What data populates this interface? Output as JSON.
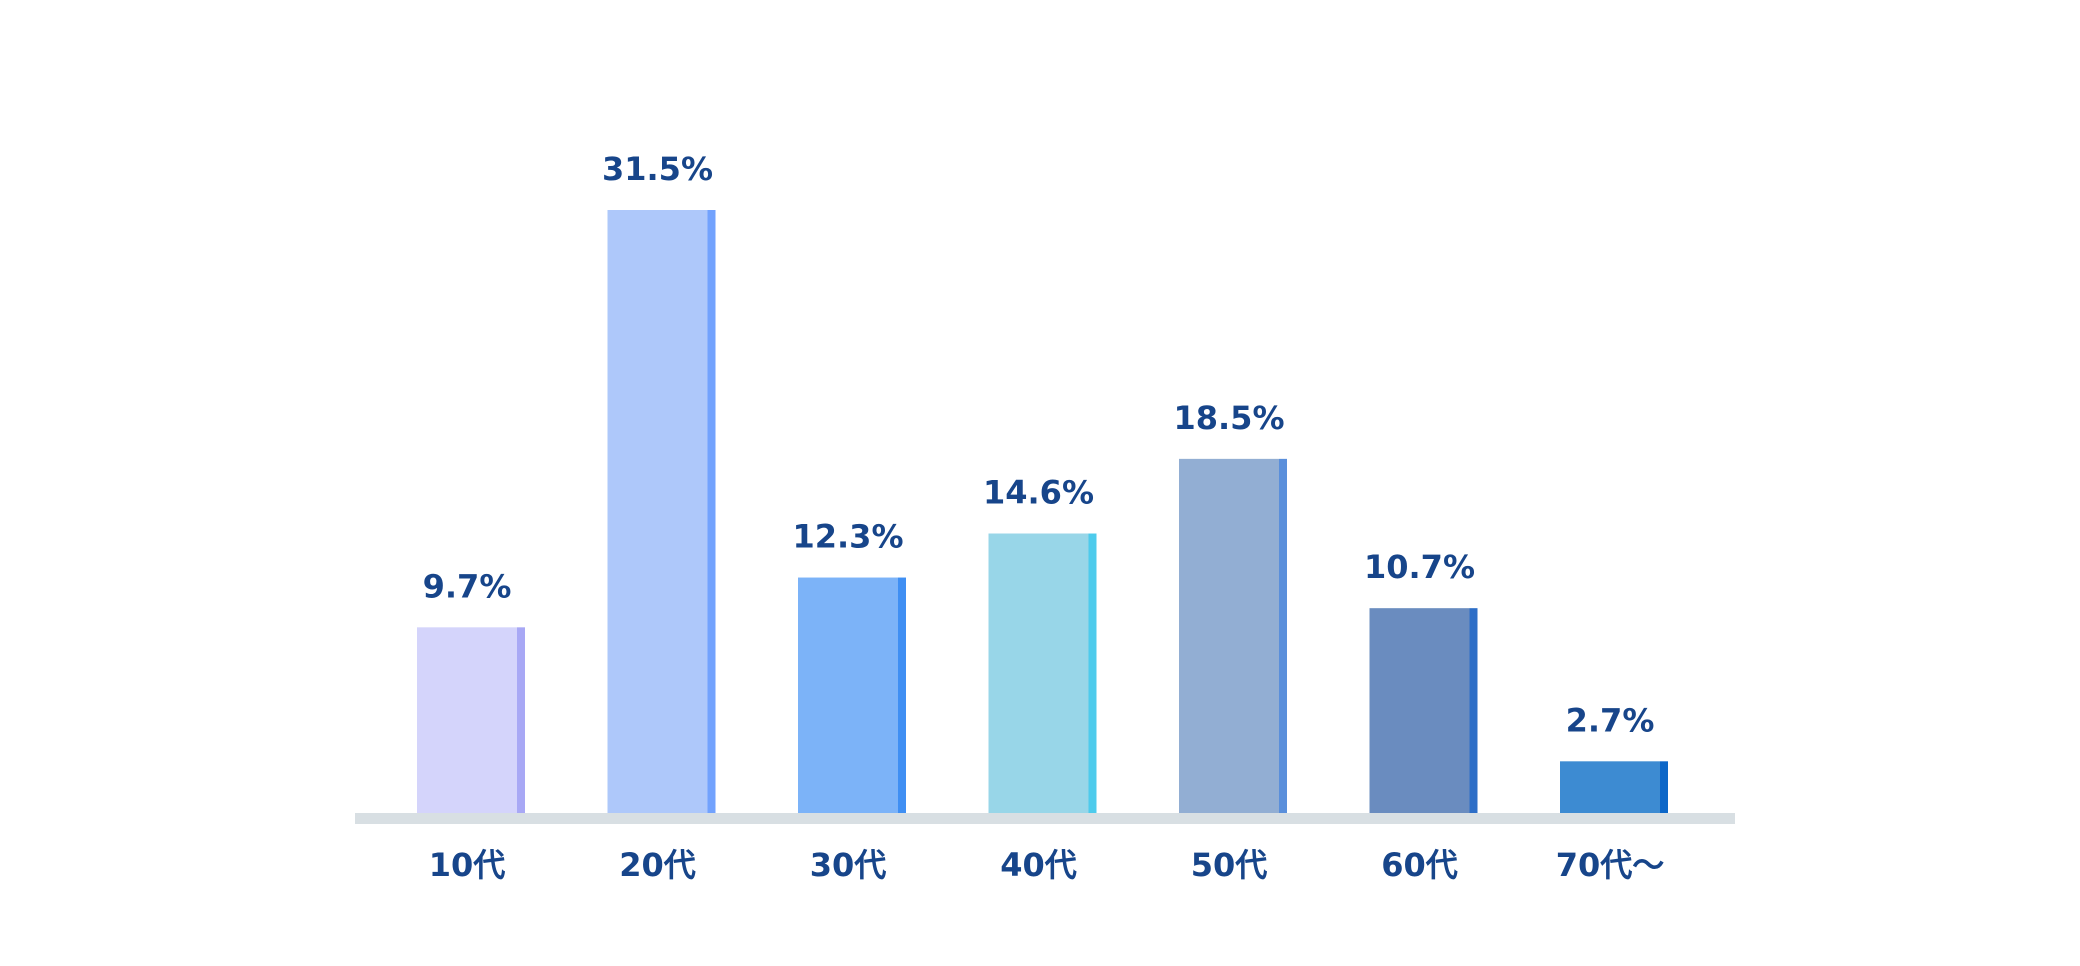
{
  "chart_data": {
    "type": "bar",
    "categories": [
      "10代",
      "20代",
      "30代",
      "40代",
      "50代",
      "60代",
      "70代～"
    ],
    "values": [
      9.7,
      31.5,
      12.3,
      14.6,
      18.5,
      10.7,
      2.7
    ],
    "value_labels": [
      "9.7%",
      "31.5%",
      "12.3%",
      "14.6%",
      "18.5%",
      "10.7%",
      "2.7%"
    ],
    "unit": "%",
    "ylim": [
      0,
      31.5
    ],
    "grid": false,
    "legend": "none",
    "colors": {
      "bar_fill": [
        "#d4d4fb",
        "#aec8fa",
        "#7cb3f8",
        "#98d6e8",
        "#92aed3",
        "#6a8cbf",
        "#3d8bd2"
      ],
      "bar_edge": [
        "#a8a8f5",
        "#72a2fd",
        "#3f8ff3",
        "#4dcbec",
        "#5a8fdb",
        "#2d6ec7",
        "#0d67c8"
      ],
      "baseline": "#d8dfe3",
      "label": "#17458a"
    }
  }
}
